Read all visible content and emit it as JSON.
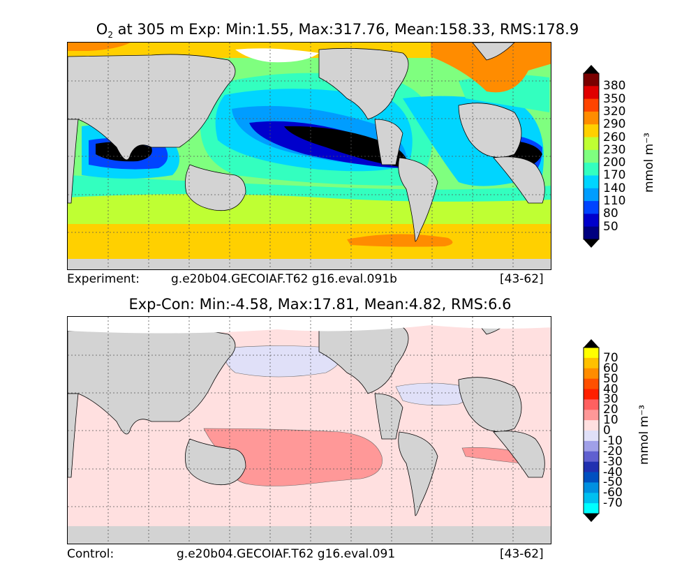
{
  "top": {
    "title_prefix": "O",
    "title_sub": "2",
    "title_rest": " at 305 m Exp: Min:1.55, Max:317.76, Mean:158.33, RMS:178.9",
    "footer_label": "Experiment:",
    "footer_case": "g.e20b04.GECOIAF.T62 g16.eval.091b",
    "footer_years": "[43-62]",
    "colorbar": {
      "ticks": [
        "380",
        "350",
        "320",
        "290",
        "260",
        "230",
        "200",
        "170",
        "140",
        "110",
        "80",
        "50"
      ],
      "colors": [
        "#7a0000",
        "#e00000",
        "#ff4400",
        "#ff8c00",
        "#ffd000",
        "#bfff33",
        "#7fff7f",
        "#33ffbf",
        "#00d5ff",
        "#009dff",
        "#0044ff",
        "#0000cc",
        "#000080"
      ],
      "over_color": "#000000",
      "under_color": "#000000",
      "unit": "mmol m⁻³"
    }
  },
  "bottom": {
    "title": "Exp-Con: Min:-4.58, Max:17.81, Mean:4.82, RMS:6.6",
    "footer_label": "Control:",
    "footer_case": "g.e20b04.GECOIAF.T62 g16.eval.091",
    "footer_years": "[43-62]",
    "colorbar": {
      "ticks": [
        "70",
        "60",
        "50",
        "40",
        "30",
        "20",
        "10",
        "0",
        "-10",
        "-20",
        "-30",
        "-40",
        "-50",
        "-60",
        "-70"
      ],
      "colors": [
        "#ffff00",
        "#ffc000",
        "#ff8c00",
        "#ff5000",
        "#ff2000",
        "#ff6060",
        "#ff9898",
        "#ffe0e0",
        "#e0e0f8",
        "#a0a0e8",
        "#6060d0",
        "#2030b0",
        "#0050c0",
        "#0090e0",
        "#00c0f0",
        "#00ffff"
      ],
      "over_color": "#000000",
      "under_color": "#000000",
      "unit": "mmol m⁻³"
    }
  },
  "colors": {
    "land": "#d3d3d3",
    "ice": "#ffffff",
    "grid": "#555555"
  }
}
